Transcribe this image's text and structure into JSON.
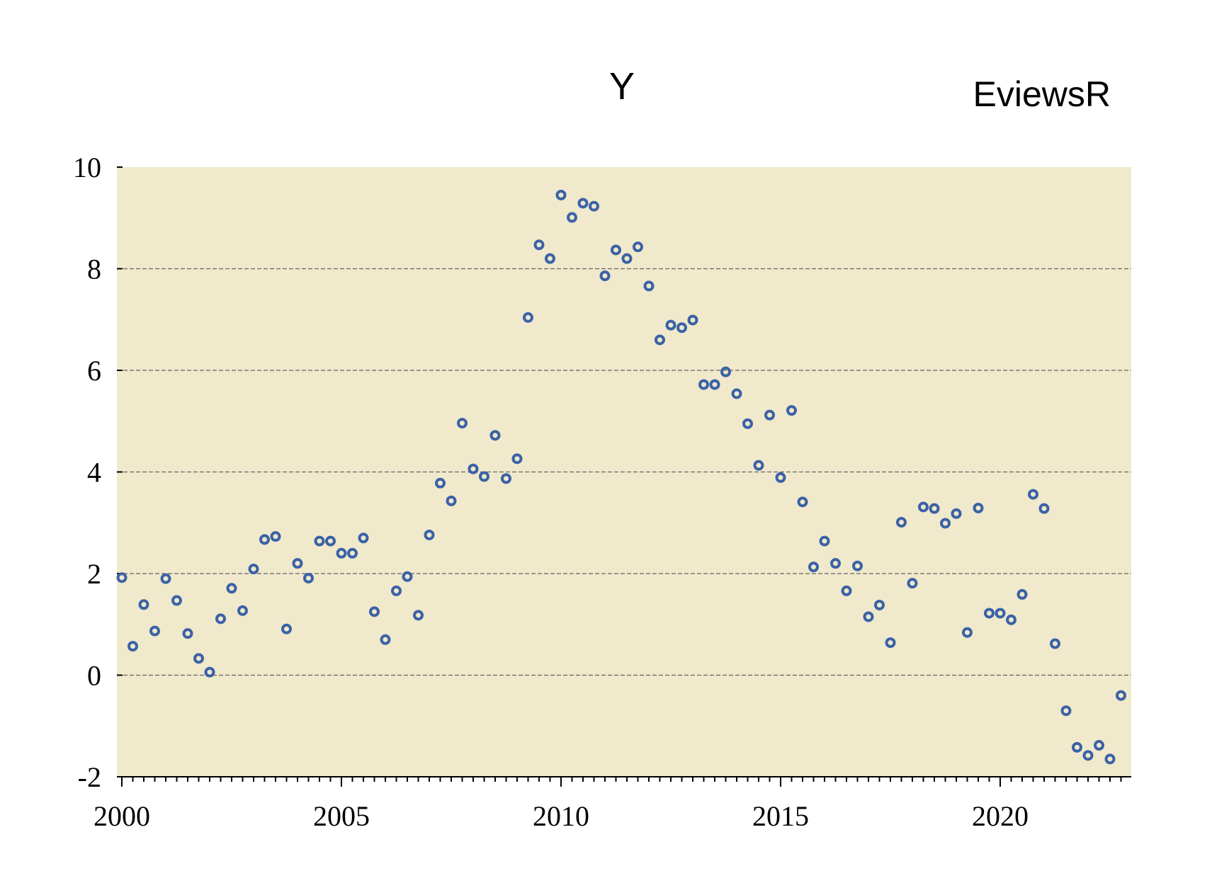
{
  "title": "Y",
  "brand": "EviewsR",
  "colors": {
    "plot_background": "#f0e9cc",
    "marker": "#3b62a6",
    "grid": "#666666"
  },
  "chart_data": {
    "type": "scatter",
    "title": "Y",
    "xlabel": "",
    "ylabel": "",
    "xlim": [
      2000,
      2022.75
    ],
    "ylim": [
      -2,
      10
    ],
    "grid": true,
    "frequency": "quarterly",
    "y_ticks": [
      -2,
      0,
      2,
      4,
      6,
      8,
      10
    ],
    "x_ticks": [
      2000,
      2005,
      2010,
      2015,
      2020
    ],
    "series": [
      {
        "marker": "hollow-circle",
        "values": [
          1.92,
          0.57,
          1.39,
          0.87,
          1.9,
          1.47,
          0.82,
          0.33,
          0.06,
          1.11,
          1.71,
          1.27,
          2.09,
          2.67,
          2.73,
          0.91,
          2.2,
          1.91,
          2.64,
          2.64,
          2.4,
          2.4,
          2.7,
          1.25,
          0.7,
          1.66,
          1.94,
          1.18,
          2.76,
          3.78,
          3.43,
          4.96,
          4.06,
          3.91,
          4.72,
          3.87,
          4.26,
          7.04,
          8.47,
          8.2,
          9.45,
          9.01,
          9.29,
          9.23,
          7.86,
          8.37,
          8.2,
          8.43,
          7.66,
          6.6,
          6.89,
          6.84,
          6.99,
          5.72,
          5.72,
          5.97,
          5.54,
          4.95,
          4.13,
          5.12,
          3.89,
          5.21,
          3.41,
          2.13,
          2.64,
          2.2,
          1.66,
          2.15,
          1.15,
          1.38,
          0.64,
          3.01,
          1.81,
          3.31,
          3.28,
          2.99,
          3.18,
          0.84,
          3.29,
          1.22,
          1.22,
          1.09,
          1.59,
          3.56,
          3.28,
          0.62,
          -0.7,
          -1.42,
          -1.58,
          -1.38,
          -1.65,
          -0.4
        ]
      }
    ]
  }
}
